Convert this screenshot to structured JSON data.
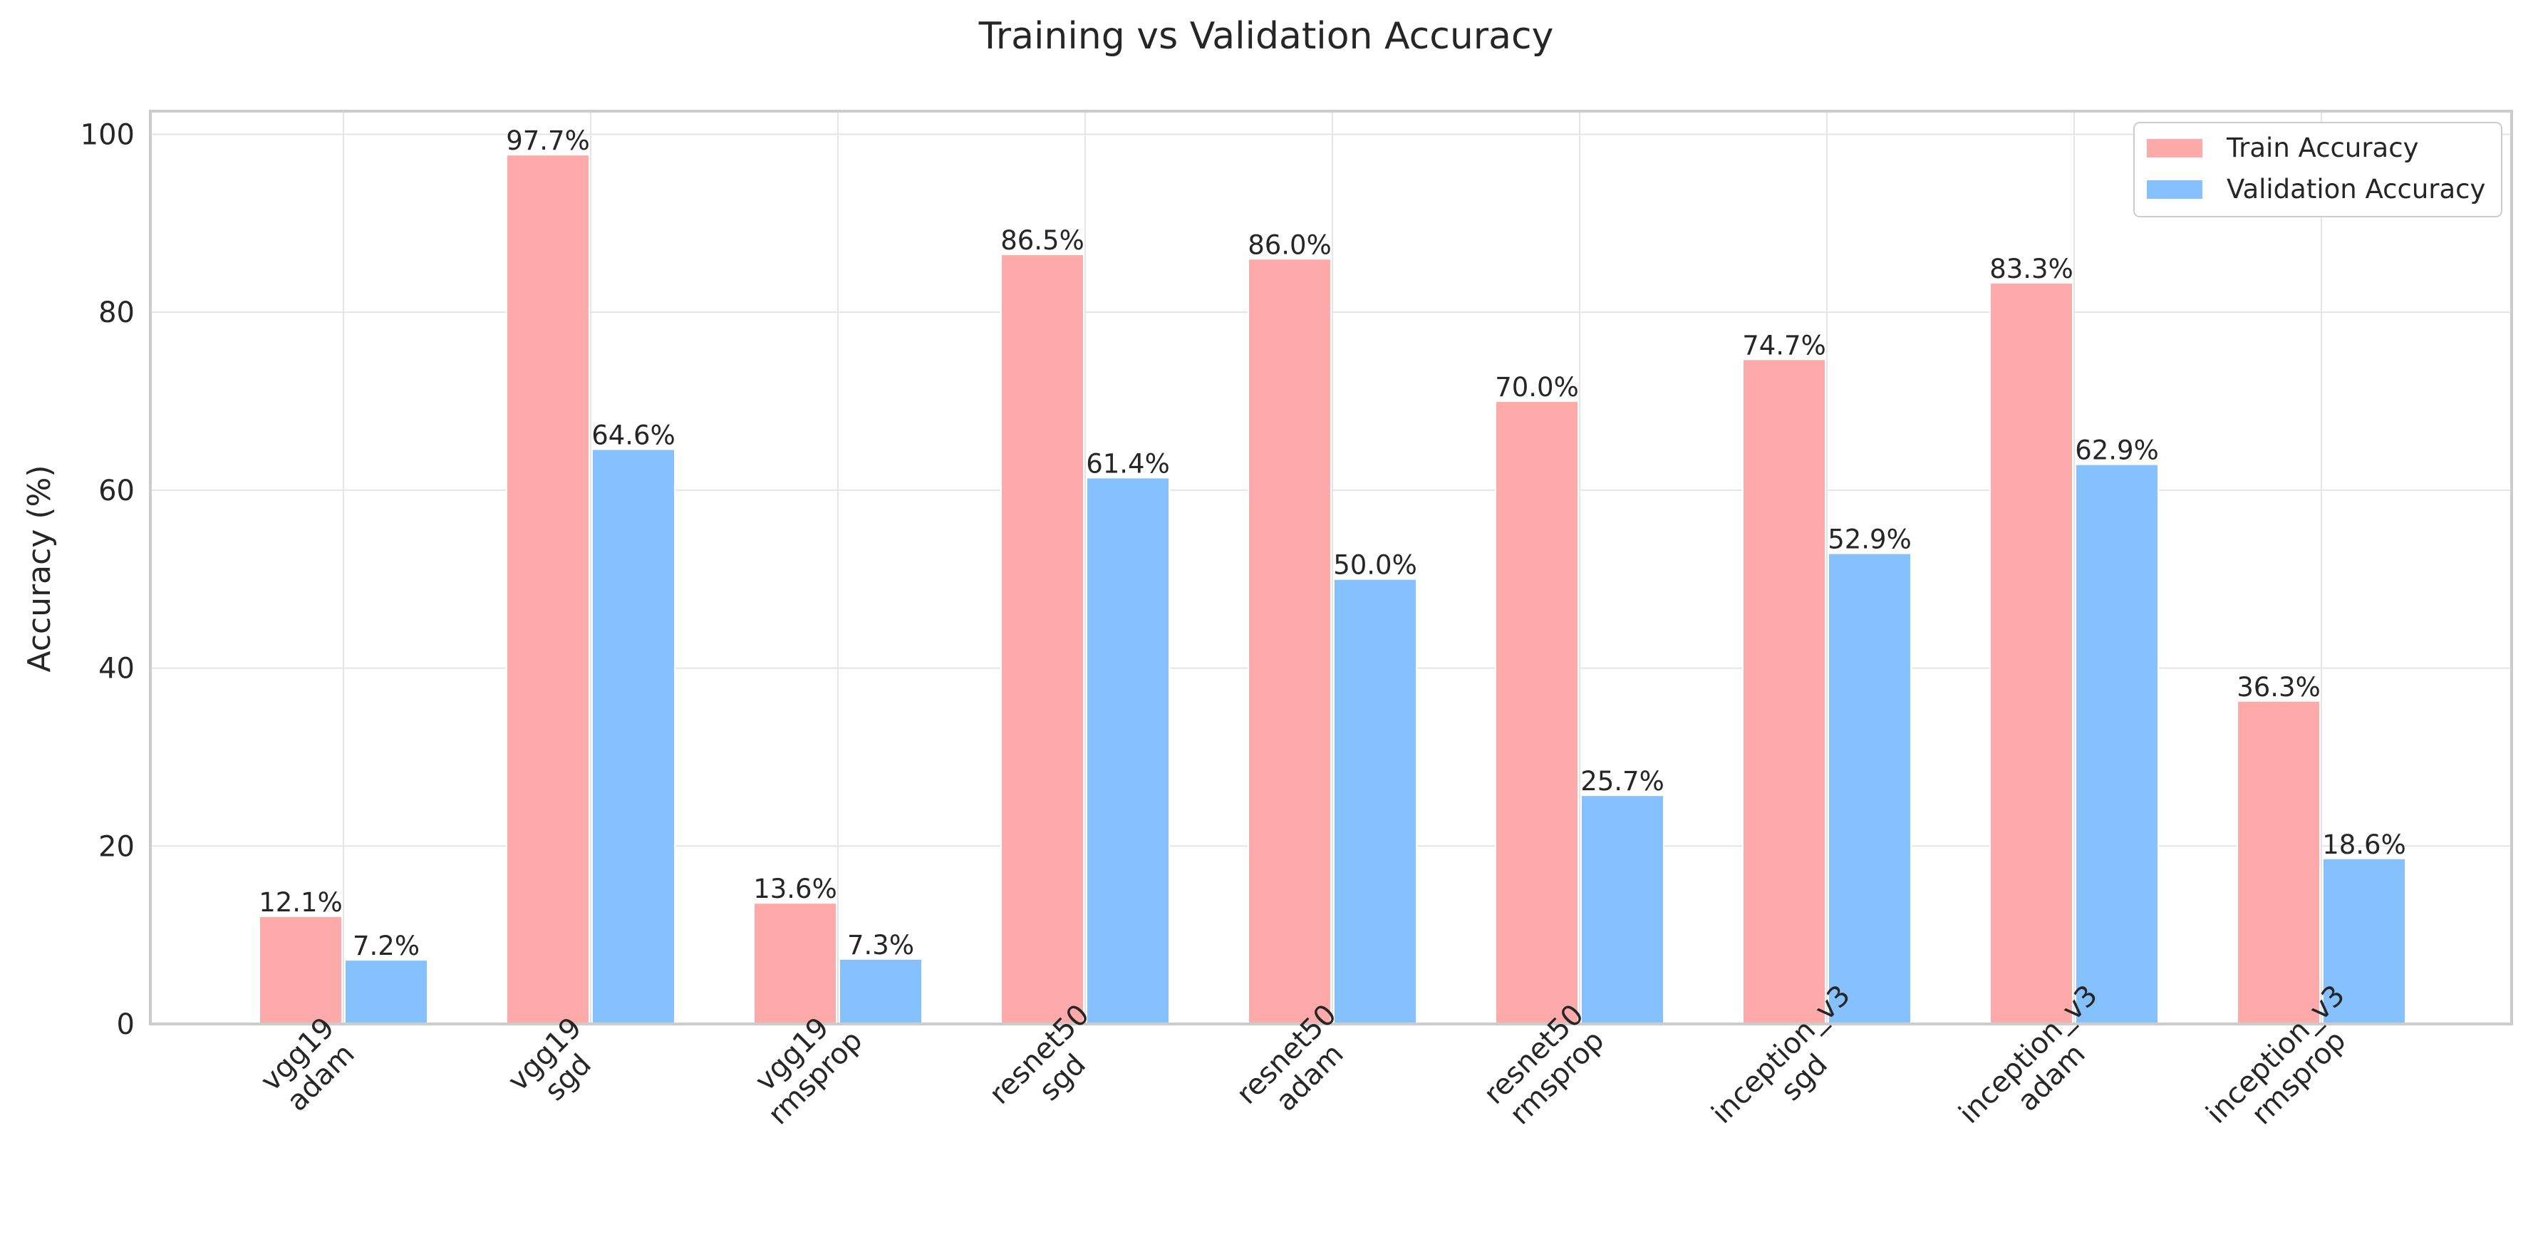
{
  "chart_data": {
    "type": "bar",
    "title": "Training vs Validation Accuracy",
    "xlabel": "",
    "ylabel": "Accuracy (%)",
    "ylim": [
      0,
      102.6
    ],
    "yticks": [
      0,
      20,
      40,
      60,
      80,
      100
    ],
    "grid": true,
    "legend_position": "top-right",
    "categories": [
      [
        "vgg19",
        "adam"
      ],
      [
        "vgg19",
        "sgd"
      ],
      [
        "vgg19",
        "rmsprop"
      ],
      [
        "resnet50",
        "sgd"
      ],
      [
        "resnet50",
        "adam"
      ],
      [
        "resnet50",
        "rmsprop"
      ],
      [
        "inception_v3",
        "sgd"
      ],
      [
        "inception_v3",
        "adam"
      ],
      [
        "inception_v3",
        "rmsprop"
      ]
    ],
    "series": [
      {
        "name": "Train Accuracy",
        "color": "#ffaaaa",
        "values": [
          12.1,
          97.7,
          13.6,
          86.5,
          86.0,
          70.0,
          74.7,
          83.3,
          36.3
        ],
        "labels": [
          "12.1%",
          "97.7%",
          "13.6%",
          "86.5%",
          "86.0%",
          "70.0%",
          "74.7%",
          "83.3%",
          "36.3%"
        ]
      },
      {
        "name": "Validation Accuracy",
        "color": "#85c1ff",
        "values": [
          7.2,
          64.6,
          7.3,
          61.4,
          50.0,
          25.7,
          52.9,
          62.9,
          18.6
        ],
        "labels": [
          "7.2%",
          "64.6%",
          "7.3%",
          "61.4%",
          "50.0%",
          "25.7%",
          "52.9%",
          "62.9%",
          "18.6%"
        ]
      }
    ]
  }
}
